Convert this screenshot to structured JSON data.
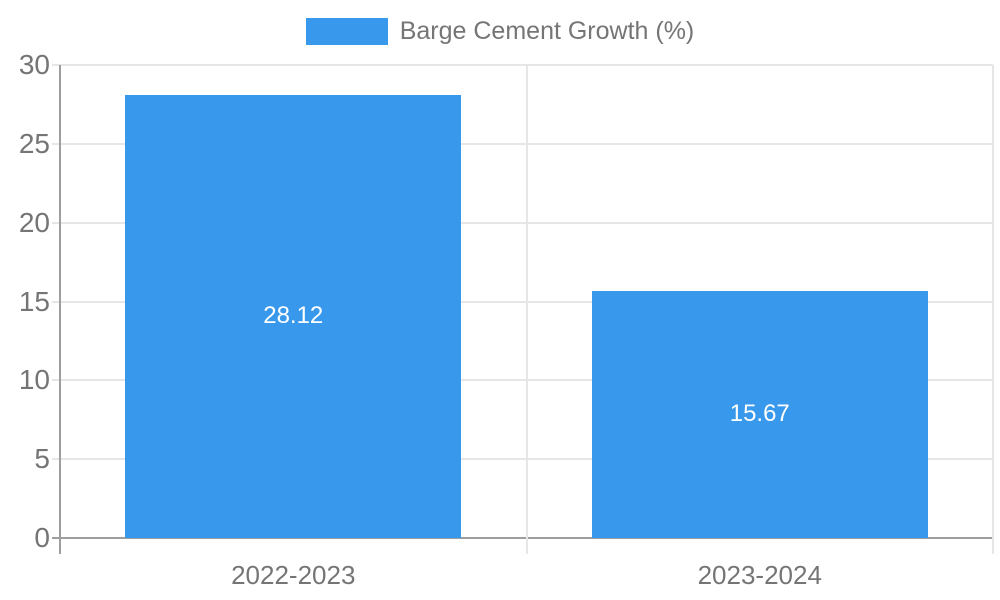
{
  "legend": {
    "label": "Barge Cement Growth (%)"
  },
  "colors": {
    "bar": "#3899ec",
    "grid": "#e6e6e6",
    "axis": "#9e9e9e",
    "text": "#757575",
    "value_text": "#ffffff",
    "background": "#ffffff"
  },
  "chart_data": {
    "type": "bar",
    "title": "Barge Cement Growth (%)",
    "categories": [
      "2022-2023",
      "2023-2024"
    ],
    "values": [
      28.12,
      15.67
    ],
    "value_labels": [
      "28.12",
      "15.67"
    ],
    "series": [
      {
        "name": "Barge Cement Growth (%)",
        "values": [
          28.12,
          15.67
        ]
      }
    ],
    "xlabel": "",
    "ylabel": "",
    "ylim": [
      0,
      30
    ],
    "yticks": [
      0,
      5,
      10,
      15,
      20,
      25,
      30
    ],
    "grid": true,
    "legend_position": "top-center"
  }
}
